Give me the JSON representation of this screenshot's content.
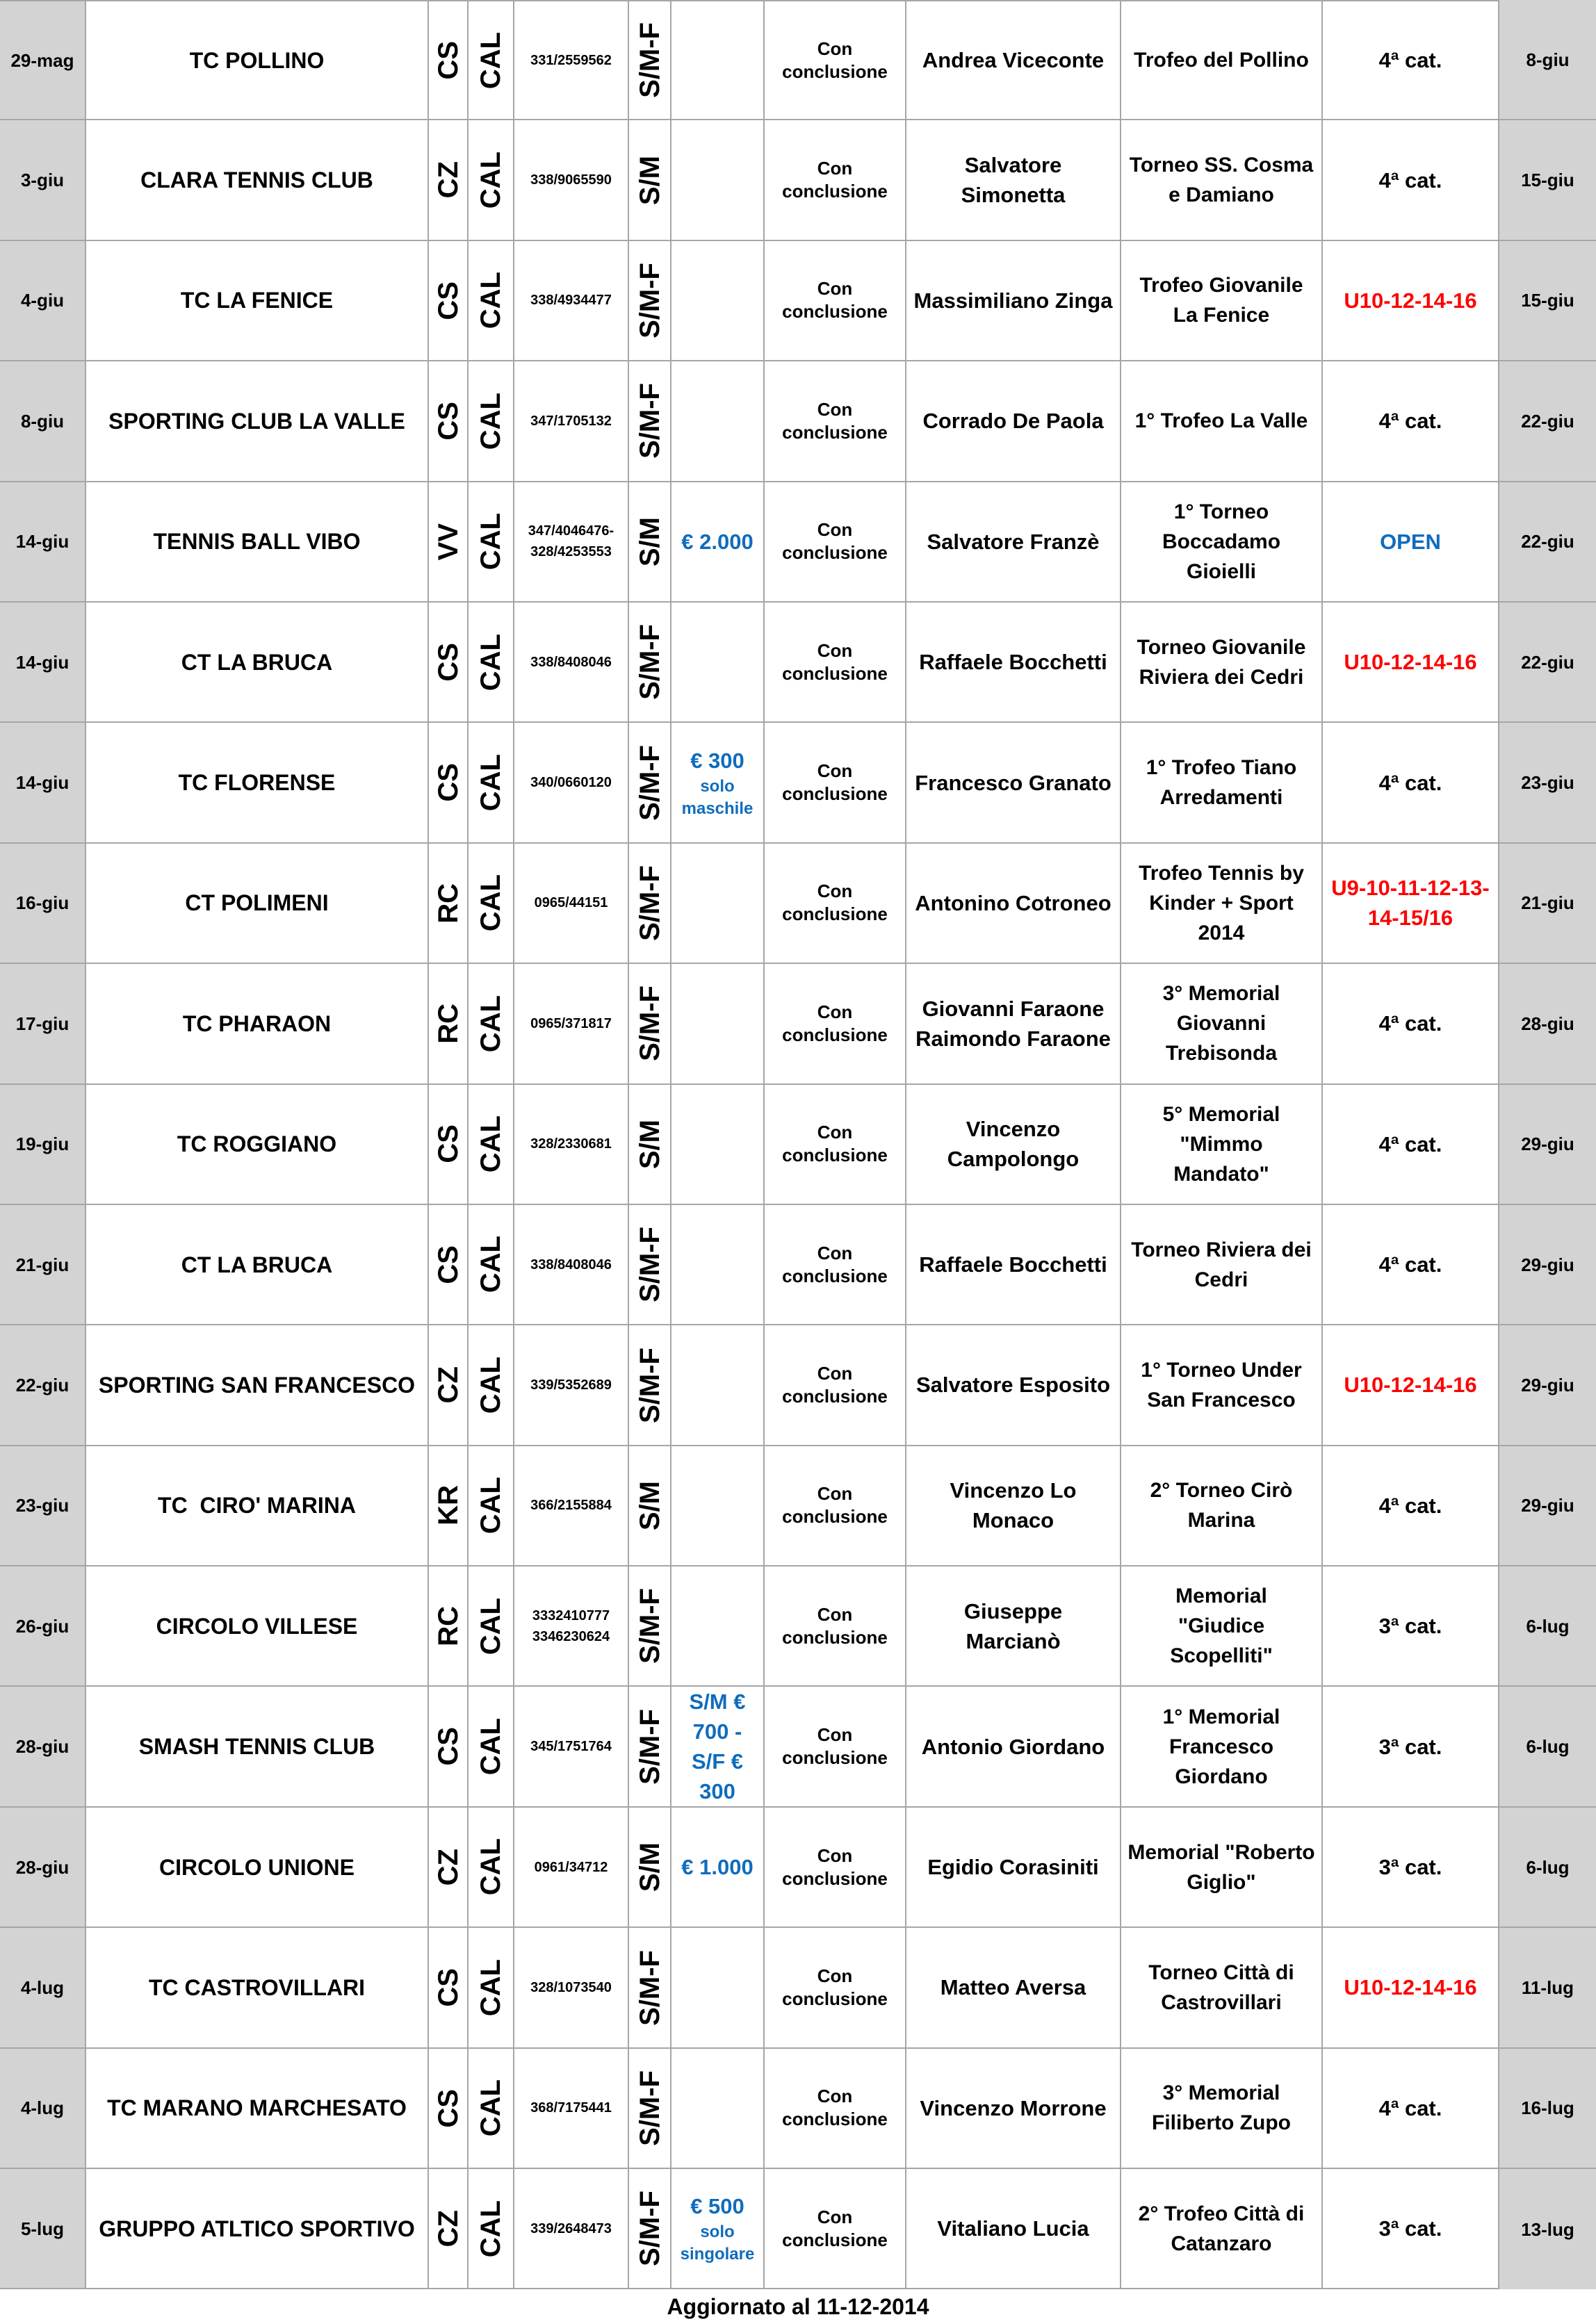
{
  "document_type": "tournament-calendar-table",
  "colors": {
    "prize_blue": "#0f6cbd",
    "category_red": "#fe0000",
    "category_blue": "#0f6cbd",
    "date_column_bg": "#d3d3d3",
    "grid_line": "#a6a6a6"
  },
  "footer": {
    "updated_note": "Aggiornato al 11-12-2014"
  },
  "table": {
    "rows": [
      {
        "start_date": "29-mag",
        "club": "TC POLLINO",
        "province": "CS",
        "region": "CAL",
        "phone": "331/2559562",
        "draw": "S/M-F",
        "prize": "",
        "prize_note": "",
        "formula": "Con\nconclusione",
        "organizer": "Andrea Viceconte",
        "tournament": "Trofeo del Pollino",
        "category": "4ª cat.",
        "category_style": "black",
        "end_date": "8-giu"
      },
      {
        "start_date": "3-giu",
        "club": "CLARA TENNIS CLUB",
        "province": "CZ",
        "region": "CAL",
        "phone": "338/9065590",
        "draw": "S/M",
        "prize": "",
        "prize_note": "",
        "formula": "Con\nconclusione",
        "organizer": "Salvatore\nSimonetta",
        "tournament": "Torneo SS. Cosma\ne Damiano",
        "category": "4ª cat.",
        "category_style": "black",
        "end_date": "15-giu"
      },
      {
        "start_date": "4-giu",
        "club": "TC LA FENICE",
        "province": "CS",
        "region": "CAL",
        "phone": "338/4934477",
        "draw": "S/M-F",
        "prize": "",
        "prize_note": "",
        "formula": "Con\nconclusione",
        "organizer": "Massimiliano Zinga",
        "tournament": "Trofeo Giovanile\nLa Fenice",
        "category": "U10-12-14-16",
        "category_style": "red",
        "end_date": "15-giu"
      },
      {
        "start_date": "8-giu",
        "club": "SPORTING CLUB LA VALLE",
        "province": "CS",
        "region": "CAL",
        "phone": "347/1705132",
        "draw": "S/M-F",
        "prize": "",
        "prize_note": "",
        "formula": "Con\nconclusione",
        "organizer": "Corrado De Paola",
        "tournament": "1° Trofeo La Valle",
        "category": "4ª cat.",
        "category_style": "black",
        "end_date": "22-giu"
      },
      {
        "start_date": "14-giu",
        "club": "TENNIS BALL VIBO",
        "province": "VV",
        "region": "CAL",
        "phone": "347/4046476-\n328/4253553",
        "draw": "S/M",
        "prize": "€ 2.000",
        "prize_note": "",
        "formula": "Con\nconclusione",
        "organizer": "Salvatore Franzè",
        "tournament": "1° Torneo\nBoccadamo\nGioielli",
        "category": "OPEN",
        "category_style": "blue",
        "end_date": "22-giu"
      },
      {
        "start_date": "14-giu",
        "club": "CT LA BRUCA",
        "province": "CS",
        "region": "CAL",
        "phone": "338/8408046",
        "draw": "S/M-F",
        "prize": "",
        "prize_note": "",
        "formula": "Con\nconclusione",
        "organizer": "Raffaele Bocchetti",
        "tournament": "Torneo Giovanile\nRiviera dei Cedri",
        "category": "U10-12-14-16",
        "category_style": "red",
        "end_date": "22-giu"
      },
      {
        "start_date": "14-giu",
        "club": "TC FLORENSE",
        "province": "CS",
        "region": "CAL",
        "phone": "340/0660120",
        "draw": "S/M-F",
        "prize": "€ 300",
        "prize_note": "solo\nmaschile",
        "formula": "Con\nconclusione",
        "organizer": "Francesco Granato",
        "tournament": "1° Trofeo Tiano\nArredamenti",
        "category": "4ª cat.",
        "category_style": "black",
        "end_date": "23-giu"
      },
      {
        "start_date": "16-giu",
        "club": "CT POLIMENI",
        "province": "RC",
        "region": "CAL",
        "phone": "0965/44151",
        "draw": "S/M-F",
        "prize": "",
        "prize_note": "",
        "formula": "Con\nconclusione",
        "organizer": "Antonino Cotroneo",
        "tournament": "Trofeo Tennis by\nKinder + Sport\n2014",
        "category": "U9-10-11-12-13-\n14-15/16",
        "category_style": "red",
        "end_date": "21-giu"
      },
      {
        "start_date": "17-giu",
        "club": "TC PHARAON",
        "province": "RC",
        "region": "CAL",
        "phone": "0965/371817",
        "draw": "S/M-F",
        "prize": "",
        "prize_note": "",
        "formula": "Con\nconclusione",
        "organizer": "Giovanni Faraone\nRaimondo Faraone",
        "tournament": "3° Memorial\nGiovanni\nTrebisonda",
        "category": "4ª cat.",
        "category_style": "black",
        "end_date": "28-giu"
      },
      {
        "start_date": "19-giu",
        "club": "TC ROGGIANO",
        "province": "CS",
        "region": "CAL",
        "phone": "328/2330681",
        "draw": "S/M",
        "prize": "",
        "prize_note": "",
        "formula": "Con\nconclusione",
        "organizer": "Vincenzo\nCampolongo",
        "tournament": "5° Memorial\n\"Mimmo\nMandato\"",
        "category": "4ª cat.",
        "category_style": "black",
        "end_date": "29-giu"
      },
      {
        "start_date": "21-giu",
        "club": "CT LA BRUCA",
        "province": "CS",
        "region": "CAL",
        "phone": "338/8408046",
        "draw": "S/M-F",
        "prize": "",
        "prize_note": "",
        "formula": "Con\nconclusione",
        "organizer": "Raffaele Bocchetti",
        "tournament": "Torneo Riviera dei\nCedri",
        "category": "4ª cat.",
        "category_style": "black",
        "end_date": "29-giu"
      },
      {
        "start_date": "22-giu",
        "club": "SPORTING SAN FRANCESCO",
        "province": "CZ",
        "region": "CAL",
        "phone": "339/5352689",
        "draw": "S/M-F",
        "prize": "",
        "prize_note": "",
        "formula": "Con\nconclusione",
        "organizer": "Salvatore Esposito",
        "tournament": "1° Torneo Under\nSan Francesco",
        "category": "U10-12-14-16",
        "category_style": "red",
        "end_date": "29-giu"
      },
      {
        "start_date": "23-giu",
        "club": "TC  CIRO' MARINA",
        "province": "KR",
        "region": "CAL",
        "phone": "366/2155884",
        "draw": "S/M",
        "prize": "",
        "prize_note": "",
        "formula": "Con\nconclusione",
        "organizer": "Vincenzo Lo\nMonaco",
        "tournament": "2° Torneo Cirò\nMarina",
        "category": "4ª cat.",
        "category_style": "black",
        "end_date": "29-giu"
      },
      {
        "start_date": "26-giu",
        "club": "CIRCOLO VILLESE",
        "province": "RC",
        "region": "CAL",
        "phone": "3332410777\n3346230624",
        "draw": "S/M-F",
        "prize": "",
        "prize_note": "",
        "formula": "Con\nconclusione",
        "organizer": "Giuseppe\nMarcianò",
        "tournament": "Memorial\n\"Giudice\nScopelliti\"",
        "category": "3ª cat.",
        "category_style": "black",
        "end_date": "6-lug"
      },
      {
        "start_date": "28-giu",
        "club": "SMASH TENNIS CLUB",
        "province": "CS",
        "region": "CAL",
        "phone": "345/1751764",
        "draw": "S/M-F",
        "prize": "S/M €\n700 -\nS/F €\n300",
        "prize_note": "",
        "formula": "Con\nconclusione",
        "organizer": "Antonio Giordano",
        "tournament": "1° Memorial\nFrancesco\nGiordano",
        "category": "3ª cat.",
        "category_style": "black",
        "end_date": "6-lug"
      },
      {
        "start_date": "28-giu",
        "club": "CIRCOLO UNIONE",
        "province": "CZ",
        "region": "CAL",
        "phone": "0961/34712",
        "draw": "S/M",
        "prize": "€ 1.000",
        "prize_note": "",
        "formula": "Con\nconclusione",
        "organizer": "Egidio Corasiniti",
        "tournament": "Memorial \"Roberto\nGiglio\"",
        "category": "3ª cat.",
        "category_style": "black",
        "end_date": "6-lug"
      },
      {
        "start_date": "4-lug",
        "club": "TC CASTROVILLARI",
        "province": "CS",
        "region": "CAL",
        "phone": "328/1073540",
        "draw": "S/M-F",
        "prize": "",
        "prize_note": "",
        "formula": "Con\nconclusione",
        "organizer": "Matteo Aversa",
        "tournament": "Torneo Città di\nCastrovillari",
        "category": "U10-12-14-16",
        "category_style": "red",
        "end_date": "11-lug"
      },
      {
        "start_date": "4-lug",
        "club": "TC MARANO MARCHESATO",
        "province": "CS",
        "region": "CAL",
        "phone": "368/7175441",
        "draw": "S/M-F",
        "prize": "",
        "prize_note": "",
        "formula": "Con\nconclusione",
        "organizer": "Vincenzo Morrone",
        "tournament": "3° Memorial\nFiliberto Zupo",
        "category": "4ª cat.",
        "category_style": "black",
        "end_date": "16-lug"
      },
      {
        "start_date": "5-lug",
        "club": "GRUPPO ATLTICO SPORTIVO",
        "province": "CZ",
        "region": "CAL",
        "phone": "339/2648473",
        "draw": "S/M-F",
        "prize": "€ 500",
        "prize_note": "solo\nsingolare",
        "formula": "Con\nconclusione",
        "organizer": "Vitaliano Lucia",
        "tournament": "2° Trofeo Città di\nCatanzaro",
        "category": "3ª cat.",
        "category_style": "black",
        "end_date": "13-lug"
      }
    ]
  }
}
